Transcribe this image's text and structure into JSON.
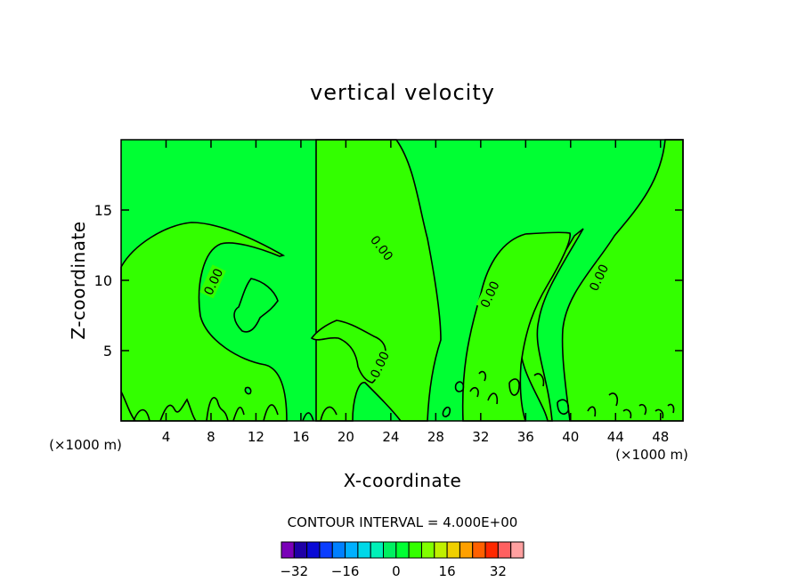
{
  "chart_data": {
    "type": "contour",
    "title": "vertical velocity",
    "xlabel": "X-coordinate",
    "ylabel": "Z-coordinate",
    "x_unit_label": "(×1000 m)",
    "x_unit_label_right": "(×1000 m)",
    "xlim": [
      0,
      50
    ],
    "ylim": [
      0,
      20
    ],
    "x_ticks": [
      4,
      8,
      12,
      16,
      20,
      24,
      28,
      32,
      36,
      40,
      44,
      48
    ],
    "y_ticks": [
      5,
      10,
      15
    ],
    "contour_interval_text": "CONTOUR INTERVAL = 4.000E+00",
    "contour_labels": [
      {
        "text": "0.00",
        "x": 8.2,
        "y": 9.9,
        "angle": -65
      },
      {
        "text": "0.00",
        "x": 23.2,
        "y": 12.3,
        "angle": 52
      },
      {
        "text": "0.00",
        "x": 23.0,
        "y": 4.0,
        "angle": -65
      },
      {
        "text": "0.00",
        "x": 32.8,
        "y": 9.0,
        "angle": -65
      },
      {
        "text": "0.00",
        "x": 42.5,
        "y": 10.2,
        "angle": -65
      }
    ],
    "field_colors": {
      "positive": "#33ff00",
      "negative": "#00ff33"
    },
    "colorbar": {
      "colors": [
        "#7a00b8",
        "#1f00a6",
        "#0a0ad6",
        "#0a3dff",
        "#0080ff",
        "#00b0ff",
        "#00d8e8",
        "#00f0b8",
        "#00f060",
        "#00ff33",
        "#33ff00",
        "#80ff00",
        "#c0f000",
        "#f0d000",
        "#ffa000",
        "#ff6000",
        "#ff2800",
        "#ff6060",
        "#ffa0a0"
      ],
      "tick_values": [
        -32,
        -16,
        0,
        16,
        32
      ],
      "tick_labels": [
        "−32",
        "−16",
        "0",
        "16",
        "32"
      ],
      "range": [
        -36,
        40
      ]
    }
  }
}
